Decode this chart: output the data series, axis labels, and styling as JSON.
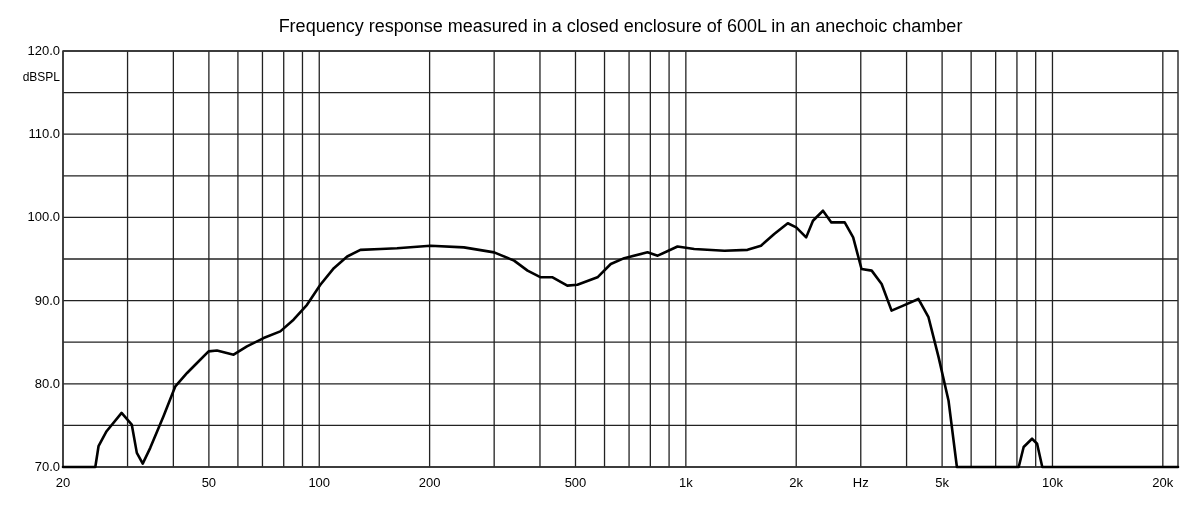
{
  "chart_data": {
    "type": "line",
    "title": "Frequency response measured in a closed enclosure of 600L in an anechoic chamber",
    "ylabel": "dBSPL",
    "log": "x",
    "grid": true,
    "marker": "none",
    "line_style": "solid",
    "xlim": [
      20,
      22000
    ],
    "ylim": [
      70,
      120
    ],
    "xticks": [
      20,
      {
        "value": 30,
        "label": null
      },
      {
        "value": 40,
        "label": null
      },
      50,
      {
        "value": 60,
        "label": null
      },
      {
        "value": 70,
        "label": null
      },
      {
        "value": 80,
        "label": null
      },
      {
        "value": 90,
        "label": null
      },
      100,
      200,
      {
        "value": 300,
        "label": null
      },
      {
        "value": 400,
        "label": null
      },
      500,
      {
        "value": 600,
        "label": null
      },
      {
        "value": 700,
        "label": null
      },
      {
        "value": 800,
        "label": null
      },
      {
        "value": 900,
        "label": null
      },
      {
        "value": 1000,
        "label": "1k"
      },
      {
        "value": 2000,
        "label": "2k"
      },
      {
        "value": 3000,
        "label": "Hz"
      },
      {
        "value": 4000,
        "label": null
      },
      {
        "value": 5000,
        "label": "5k"
      },
      {
        "value": 6000,
        "label": null
      },
      {
        "value": 7000,
        "label": null
      },
      {
        "value": 8000,
        "label": null
      },
      {
        "value": 9000,
        "label": null
      },
      {
        "value": 10000,
        "label": "10k"
      },
      {
        "value": 20000,
        "label": "20k"
      }
    ],
    "yticks": [
      {
        "value": 70,
        "label": "70.0"
      },
      {
        "value": 75,
        "label": null
      },
      {
        "value": 80,
        "label": "80.0"
      },
      {
        "value": 85,
        "label": null
      },
      {
        "value": 90,
        "label": "90.0"
      },
      {
        "value": 95,
        "label": null
      },
      {
        "value": 100,
        "label": "100.0"
      },
      {
        "value": 105,
        "label": null
      },
      {
        "value": 110,
        "label": "110.0"
      },
      {
        "value": 115,
        "label": null
      },
      {
        "value": 120,
        "label": "120.0"
      }
    ],
    "series": [
      {
        "color": "#000000",
        "x": [
          20,
          24.5,
          25,
          26.3,
          28.9,
          30.8,
          31.8,
          33,
          34.6,
          37.6,
          40.5,
          43.6,
          46.4,
          49.9,
          52.6,
          58.4,
          63.5,
          70.5,
          78.3,
          85.1,
          92.6,
          100.7,
          109.6,
          119.2,
          129.5,
          147,
          163,
          201,
          248,
          300,
          340,
          370,
          402,
          433,
          475,
          506,
          574,
          624,
          679,
          786,
          838,
          949,
          1054,
          1274,
          1473,
          1603,
          1742,
          1897,
          2000,
          2129,
          2222,
          2366,
          2494,
          2712,
          2860,
          3014,
          3213,
          3420,
          3640,
          3917,
          4307,
          4590,
          4890,
          5205,
          5487,
          8090,
          8345,
          8795,
          9080,
          9380,
          22000
        ],
        "values": [
          70,
          70,
          72.5,
          74.3,
          76.5,
          75.1,
          71.7,
          70.4,
          72.3,
          76.1,
          79.7,
          81.3,
          82.5,
          83.9,
          84,
          83.5,
          84.5,
          85.5,
          86.3,
          87.7,
          89.5,
          91.9,
          93.9,
          95.3,
          96.1,
          96.2,
          96.3,
          96.6,
          96.4,
          95.8,
          94.8,
          93.6,
          92.8,
          92.8,
          91.8,
          91.9,
          92.8,
          94.4,
          95.1,
          95.8,
          95.4,
          96.5,
          96.2,
          96,
          96.1,
          96.6,
          98,
          99.3,
          98.8,
          97.6,
          99.6,
          100.8,
          99.4,
          99.4,
          97.6,
          93.8,
          93.6,
          92,
          88.8,
          89.4,
          90.2,
          88,
          83.2,
          78,
          70,
          70,
          72.4,
          73.4,
          72.8,
          70,
          70
        ]
      }
    ]
  }
}
